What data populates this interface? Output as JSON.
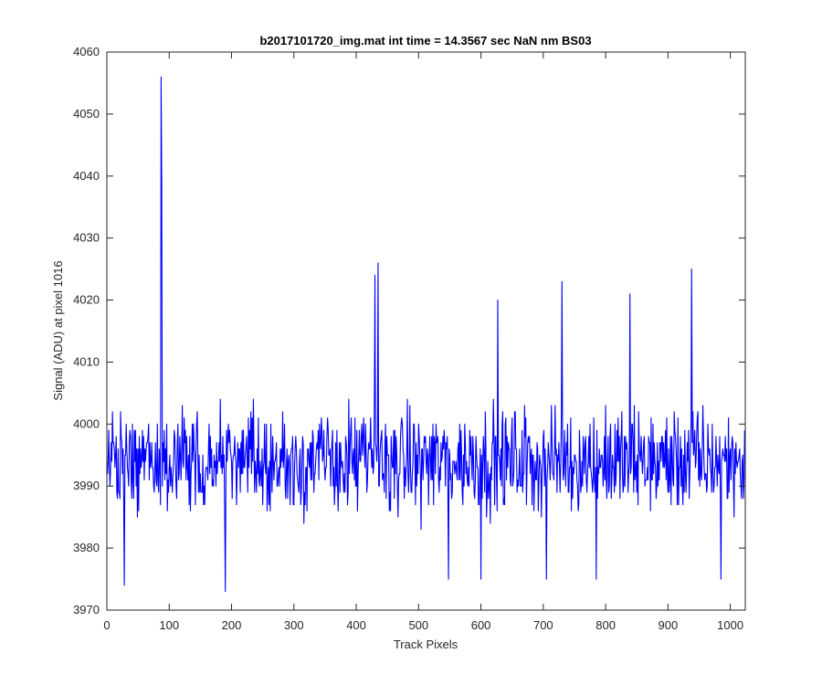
{
  "chart_data": {
    "type": "line",
    "title": "b2017101720_img.mat int time = 14.3567 sec  NaN nm BS03",
    "xlabel": "Track Pixels",
    "ylabel": "Signal (ADU) at pixel 1016",
    "xlim": [
      0,
      1024
    ],
    "ylim": [
      3970,
      4060
    ],
    "xticks": [
      0,
      100,
      200,
      300,
      400,
      500,
      600,
      700,
      800,
      900,
      1000
    ],
    "yticks": [
      3970,
      3980,
      3990,
      4000,
      4010,
      4020,
      4030,
      4040,
      4050,
      4060
    ],
    "grid": false,
    "legend": "none",
    "line_color": "#0000ff",
    "series": [
      {
        "n_points": 1024,
        "noise_mean": 3994,
        "noise_range": [
          3973,
          4018
        ],
        "features": [
          {
            "x": 87,
            "y": 4056
          },
          {
            "x": 88,
            "y": 4039
          },
          {
            "x": 435,
            "y": 4026
          },
          {
            "x": 430,
            "y": 4024
          },
          {
            "x": 938,
            "y": 4025
          },
          {
            "x": 730,
            "y": 4023
          },
          {
            "x": 839,
            "y": 4021
          },
          {
            "x": 627,
            "y": 4020
          },
          {
            "x": 190,
            "y": 3973
          },
          {
            "x": 28,
            "y": 3974
          },
          {
            "x": 548,
            "y": 3975
          },
          {
            "x": 600,
            "y": 3975
          },
          {
            "x": 705,
            "y": 3975
          },
          {
            "x": 785,
            "y": 3975
          },
          {
            "x": 985,
            "y": 3975
          }
        ]
      }
    ]
  }
}
